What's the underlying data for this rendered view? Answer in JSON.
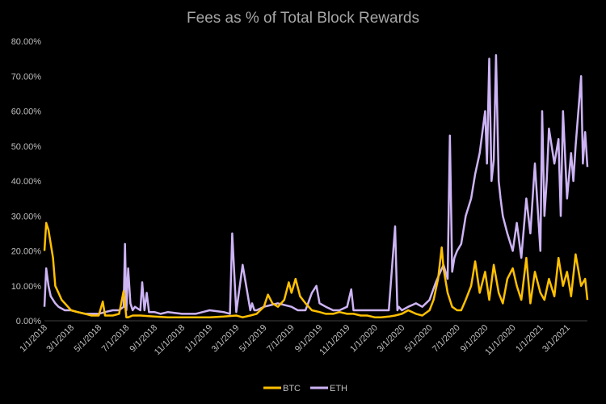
{
  "chart_data": {
    "type": "line",
    "title": "Fees as % of Total Block Rewards",
    "xlabel": "",
    "ylabel": "",
    "ylim": [
      0,
      80
    ],
    "y_ticks": [
      "0.00%",
      "10.00%",
      "20.00%",
      "30.00%",
      "40.00%",
      "50.00%",
      "60.00%",
      "70.00%",
      "80.00%"
    ],
    "x_ticks": [
      "1/1/2018",
      "3/1/2018",
      "5/1/2018",
      "7/1/2018",
      "9/1/2018",
      "11/1/2018",
      "1/1/2019",
      "3/1/2019",
      "5/1/2019",
      "7/1/2019",
      "9/1/2019",
      "11/1/2019",
      "1/1/2020",
      "3/1/2020",
      "5/1/2020",
      "7/1/2020",
      "9/1/2020",
      "11/1/2020",
      "1/1/2021",
      "3/1/2021"
    ],
    "grid": false,
    "legend_position": "bottom",
    "colors": {
      "BTC": "#ffc000",
      "ETH": "#cdb4f5",
      "background": "#000000"
    },
    "series": [
      {
        "name": "BTC",
        "x": [
          "2018-01-01",
          "2018-01-05",
          "2018-01-10",
          "2018-01-15",
          "2018-01-20",
          "2018-01-25",
          "2018-02-01",
          "2018-02-08",
          "2018-02-15",
          "2018-02-22",
          "2018-03-01",
          "2018-03-15",
          "2018-04-01",
          "2018-04-15",
          "2018-05-01",
          "2018-05-10",
          "2018-05-15",
          "2018-05-20",
          "2018-06-01",
          "2018-06-15",
          "2018-06-25",
          "2018-07-01",
          "2018-07-05",
          "2018-07-15",
          "2018-08-01",
          "2018-09-01",
          "2018-10-01",
          "2018-11-01",
          "2018-12-01",
          "2019-01-01",
          "2019-02-01",
          "2019-03-01",
          "2019-03-15",
          "2019-04-01",
          "2019-04-15",
          "2019-05-01",
          "2019-05-10",
          "2019-05-20",
          "2019-06-01",
          "2019-06-15",
          "2019-06-25",
          "2019-07-01",
          "2019-07-10",
          "2019-07-20",
          "2019-08-01",
          "2019-08-15",
          "2019-09-01",
          "2019-09-15",
          "2019-10-01",
          "2019-10-15",
          "2019-11-01",
          "2019-11-15",
          "2019-12-01",
          "2019-12-15",
          "2020-01-01",
          "2020-01-15",
          "2020-02-01",
          "2020-02-15",
          "2020-03-01",
          "2020-03-15",
          "2020-04-01",
          "2020-04-15",
          "2020-05-01",
          "2020-05-10",
          "2020-05-20",
          "2020-05-28",
          "2020-06-01",
          "2020-06-10",
          "2020-06-20",
          "2020-07-01",
          "2020-07-10",
          "2020-07-20",
          "2020-08-01",
          "2020-08-10",
          "2020-08-20",
          "2020-09-01",
          "2020-09-10",
          "2020-09-20",
          "2020-10-01",
          "2020-10-10",
          "2020-10-20",
          "2020-11-01",
          "2020-11-10",
          "2020-11-20",
          "2020-12-01",
          "2020-12-10",
          "2020-12-20",
          "2021-01-01",
          "2021-01-10",
          "2021-01-20",
          "2021-02-01",
          "2021-02-10",
          "2021-02-20",
          "2021-03-01",
          "2021-03-10",
          "2021-03-20",
          "2021-04-01",
          "2021-04-10",
          "2021-04-15"
        ],
        "values": [
          20,
          28,
          26,
          22,
          18,
          10,
          8,
          6,
          5,
          4,
          3,
          2.5,
          2,
          1.5,
          1.5,
          5.5,
          1.5,
          1.5,
          1.5,
          2,
          8.5,
          1,
          1,
          1.5,
          1.5,
          1.2,
          1,
          1,
          1,
          1,
          1.2,
          1.5,
          1,
          1.5,
          2,
          4,
          7.5,
          5,
          4,
          6,
          11,
          8,
          12,
          7,
          5,
          3,
          2.5,
          2,
          2,
          2.5,
          2,
          2,
          1.5,
          1.5,
          1,
          1,
          1.2,
          1.5,
          2,
          3,
          2,
          1.5,
          3,
          6,
          12,
          21,
          15,
          8,
          4,
          3,
          3,
          6,
          10,
          17,
          8,
          14,
          6,
          16,
          8,
          5,
          12,
          15,
          10,
          6,
          18,
          5,
          14,
          8,
          6,
          12,
          7,
          18,
          10,
          14,
          7,
          19,
          10,
          12,
          6
        ]
      },
      {
        "name": "ETH",
        "x": [
          "2018-01-01",
          "2018-01-05",
          "2018-01-10",
          "2018-01-15",
          "2018-01-25",
          "2018-02-01",
          "2018-02-15",
          "2018-03-01",
          "2018-03-15",
          "2018-04-01",
          "2018-04-15",
          "2018-05-01",
          "2018-05-15",
          "2018-06-01",
          "2018-06-15",
          "2018-06-25",
          "2018-06-28",
          "2018-07-01",
          "2018-07-05",
          "2018-07-10",
          "2018-07-15",
          "2018-07-20",
          "2018-08-01",
          "2018-08-05",
          "2018-08-10",
          "2018-08-15",
          "2018-08-20",
          "2018-09-01",
          "2018-09-15",
          "2018-10-01",
          "2018-11-01",
          "2018-12-01",
          "2019-01-01",
          "2019-02-01",
          "2019-02-15",
          "2019-02-20",
          "2019-03-01",
          "2019-03-15",
          "2019-04-01",
          "2019-04-05",
          "2019-04-10",
          "2019-04-15",
          "2019-05-01",
          "2019-06-01",
          "2019-07-01",
          "2019-07-15",
          "2019-08-01",
          "2019-08-15",
          "2019-08-25",
          "2019-09-01",
          "2019-09-15",
          "2019-10-01",
          "2019-10-15",
          "2019-11-01",
          "2019-11-10",
          "2019-11-15",
          "2019-12-01",
          "2019-12-15",
          "2020-01-01",
          "2020-01-15",
          "2020-02-01",
          "2020-02-15",
          "2020-02-20",
          "2020-02-23",
          "2020-03-01",
          "2020-03-15",
          "2020-04-01",
          "2020-04-15",
          "2020-05-01",
          "2020-05-15",
          "2020-06-01",
          "2020-06-10",
          "2020-06-15",
          "2020-06-20",
          "2020-06-25",
          "2020-07-01",
          "2020-07-10",
          "2020-07-20",
          "2020-08-01",
          "2020-08-10",
          "2020-08-20",
          "2020-09-01",
          "2020-09-05",
          "2020-09-10",
          "2020-09-15",
          "2020-09-20",
          "2020-09-25",
          "2020-10-01",
          "2020-10-05",
          "2020-10-10",
          "2020-10-20",
          "2020-11-01",
          "2020-11-10",
          "2020-11-20",
          "2020-12-01",
          "2020-12-10",
          "2020-12-20",
          "2021-01-01",
          "2021-01-05",
          "2021-01-10",
          "2021-01-15",
          "2021-01-20",
          "2021-02-01",
          "2021-02-10",
          "2021-02-15",
          "2021-02-20",
          "2021-03-01",
          "2021-03-10",
          "2021-03-15",
          "2021-03-20",
          "2021-04-01",
          "2021-04-05",
          "2021-04-10",
          "2021-04-15"
        ],
        "values": [
          4,
          15,
          10,
          7,
          5,
          4,
          3,
          3,
          2.5,
          2,
          2,
          2,
          2.5,
          3,
          3,
          4,
          22,
          3,
          15,
          5,
          3,
          4,
          3,
          11,
          3,
          8,
          2.5,
          2.5,
          2,
          2.5,
          2,
          2,
          3,
          2.5,
          2,
          25,
          2.5,
          16,
          3,
          5,
          3,
          3,
          4,
          5,
          4,
          3,
          3,
          8,
          10,
          5,
          4,
          3,
          3,
          4,
          9,
          3,
          3,
          3,
          3,
          3,
          3,
          27,
          3,
          4,
          3,
          4,
          5,
          4,
          6,
          11,
          16,
          12,
          53,
          14,
          18,
          20,
          22,
          30,
          35,
          42,
          48,
          60,
          45,
          75,
          40,
          46,
          76,
          40,
          35,
          30,
          25,
          20,
          28,
          18,
          35,
          25,
          45,
          20,
          60,
          30,
          40,
          55,
          45,
          52,
          30,
          60,
          35,
          48,
          40,
          50,
          70,
          45,
          54,
          44
        ]
      }
    ]
  }
}
